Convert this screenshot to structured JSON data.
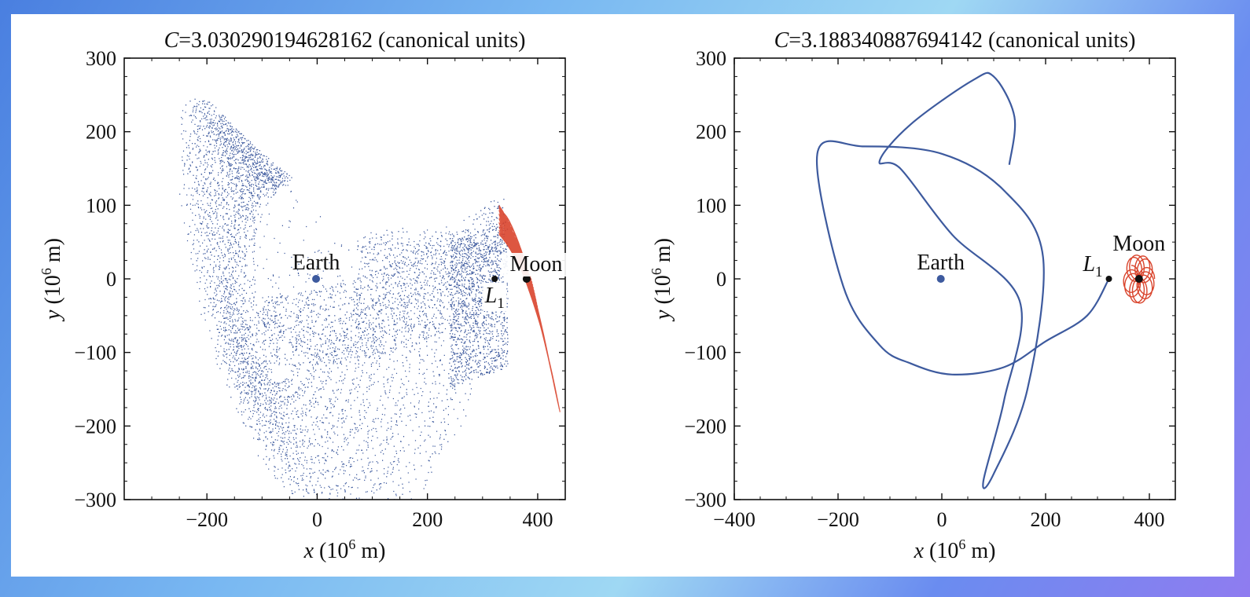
{
  "chart_data": [
    {
      "type": "scatter",
      "title": {
        "prefix": "C",
        "value": "=3.030290194628162",
        "suffix": " (canonical units)"
      },
      "xlabel": {
        "var": "x",
        "pre": " (10",
        "exp": "6",
        "post": " m)"
      },
      "ylabel": {
        "var": "y",
        "pre": " (10",
        "exp": "6",
        "post": " m)"
      },
      "xlim": [
        -350,
        450
      ],
      "ylim": [
        -300,
        300
      ],
      "xticks": [
        -200,
        0,
        200,
        400
      ],
      "xtick_labels": [
        "−200",
        "0",
        "200",
        "400"
      ],
      "yticks": [
        -300,
        -200,
        -100,
        0,
        100,
        200,
        300
      ],
      "ytick_labels": [
        "−300",
        "−200",
        "−100",
        "0",
        "100",
        "200",
        "300"
      ],
      "grid": false,
      "colors": {
        "earth_branch": "#3d5a9e",
        "moon_branch": "#d9442c",
        "marker": "#111111"
      },
      "markers": [
        {
          "name": "Earth",
          "x": -2,
          "y": 0,
          "color": "#3d5a9e"
        },
        {
          "name": "L",
          "sub": "1",
          "x": 322,
          "y": 0,
          "color": "#111111"
        },
        {
          "name": "Moon",
          "x": 380,
          "y": 0,
          "color": "#111111"
        }
      ],
      "series": [
        {
          "kind": "dense_manifold_earth_side",
          "x_extent": [
            -340,
            350
          ],
          "y_extent": [
            -300,
            275
          ]
        },
        {
          "kind": "dense_manifold_moon_side",
          "x_extent": [
            315,
            440
          ],
          "y_extent": [
            -140,
            95
          ]
        }
      ]
    },
    {
      "type": "line",
      "title": {
        "prefix": "C",
        "value": "=3.188340887694142",
        "suffix": " (canonical units)"
      },
      "xlabel": {
        "var": "x",
        "pre": " (10",
        "exp": "6",
        "post": " m)"
      },
      "ylabel": {
        "var": "y",
        "pre": " (10",
        "exp": "6",
        "post": " m)"
      },
      "xlim": [
        -400,
        450
      ],
      "ylim": [
        -300,
        300
      ],
      "xticks": [
        -400,
        -200,
        0,
        200,
        400
      ],
      "xtick_labels": [
        "−400",
        "−200",
        "0",
        "200",
        "400"
      ],
      "yticks": [
        -300,
        -200,
        -100,
        0,
        100,
        200,
        300
      ],
      "ytick_labels": [
        "−300",
        "−200",
        "−100",
        "0",
        "100",
        "200",
        "300"
      ],
      "grid": false,
      "colors": {
        "earth_branch": "#3d5a9e",
        "moon_branch": "#d9442c",
        "marker": "#111111"
      },
      "markers": [
        {
          "name": "Earth",
          "x": -2,
          "y": 0,
          "color": "#3d5a9e"
        },
        {
          "name": "L",
          "sub": "1",
          "x": 322,
          "y": 0,
          "color": "#111111"
        },
        {
          "name": "Moon",
          "x": 380,
          "y": 0,
          "color": "#111111"
        }
      ],
      "series": [
        {
          "kind": "trajectory_earth_side",
          "x": [
            322,
            280,
            200,
            120,
            20,
            -60,
            -120,
            -190,
            -240,
            -150,
            0,
            120,
            195,
            165,
            100,
            80,
            120,
            150,
            20,
            -80,
            -120,
            -60,
            60,
            100,
            140,
            130
          ],
          "y": [
            0,
            -50,
            -85,
            -120,
            -130,
            -115,
            -90,
            -10,
            170,
            180,
            170,
            120,
            30,
            -150,
            -265,
            -275,
            -165,
            -30,
            60,
            150,
            160,
            210,
            270,
            275,
            220,
            155
          ]
        },
        {
          "kind": "trajectory_moon_side",
          "center_x": 380,
          "center_y": 0,
          "radius": 30
        }
      ]
    }
  ]
}
